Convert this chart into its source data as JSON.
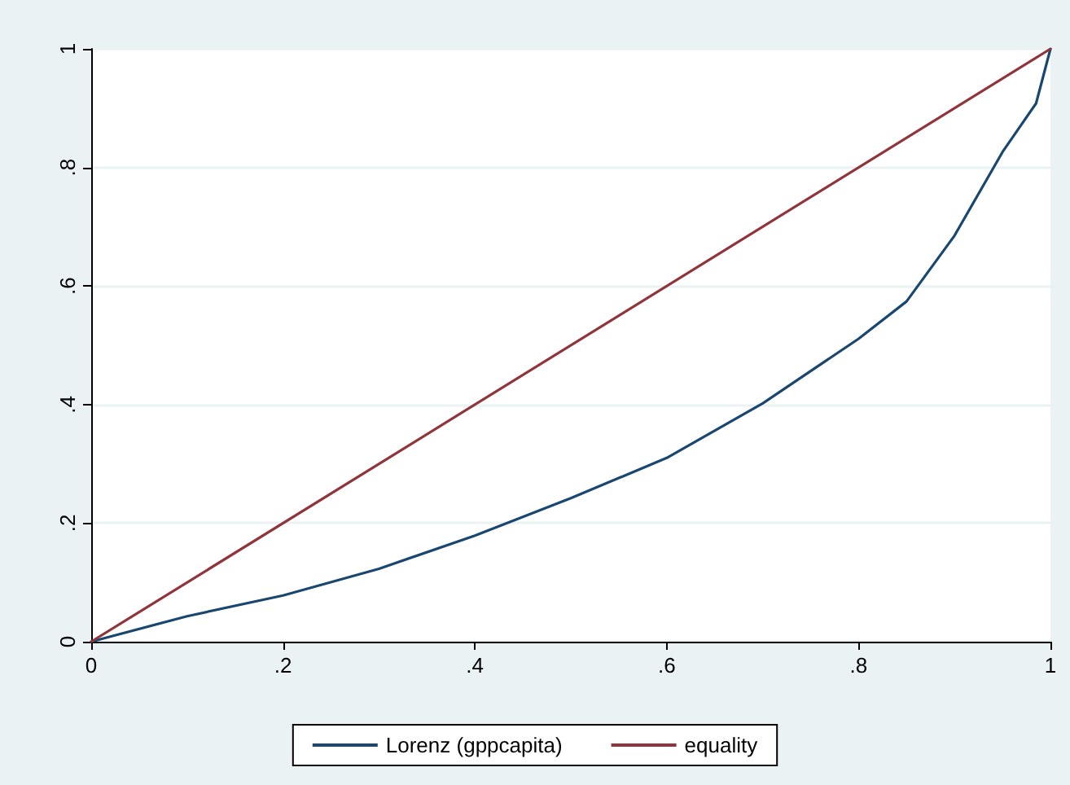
{
  "chart_data": {
    "type": "line",
    "series": [
      {
        "name": "Lorenz (gppcapita)",
        "color": "#1a476f",
        "x": [
          0,
          0.1,
          0.2,
          0.3,
          0.4,
          0.5,
          0.6,
          0.7,
          0.8,
          0.85,
          0.9,
          0.95,
          0.985,
          1
        ],
        "values": [
          0,
          0.043,
          0.078,
          0.123,
          0.179,
          0.242,
          0.31,
          0.402,
          0.511,
          0.574,
          0.685,
          0.826,
          0.908,
          1
        ]
      },
      {
        "name": "equality",
        "color": "#90353b",
        "x": [
          0,
          1
        ],
        "values": [
          0,
          1
        ]
      }
    ],
    "xlim": [
      0,
      1
    ],
    "ylim": [
      0,
      1
    ],
    "xticks": [
      {
        "value": 0,
        "label": "0"
      },
      {
        "value": 0.2,
        "label": ".2"
      },
      {
        "value": 0.4,
        "label": ".4"
      },
      {
        "value": 0.6,
        "label": ".6"
      },
      {
        "value": 0.8,
        "label": ".8"
      },
      {
        "value": 1,
        "label": "1"
      }
    ],
    "yticks": [
      {
        "value": 0,
        "label": "0"
      },
      {
        "value": 0.2,
        "label": ".2"
      },
      {
        "value": 0.4,
        "label": ".4"
      },
      {
        "value": 0.6,
        "label": ".6"
      },
      {
        "value": 0.8,
        "label": ".8"
      },
      {
        "value": 1,
        "label": "1"
      }
    ],
    "grid": "y",
    "legend": "bottom",
    "marker": "none",
    "line_style": "solid"
  }
}
